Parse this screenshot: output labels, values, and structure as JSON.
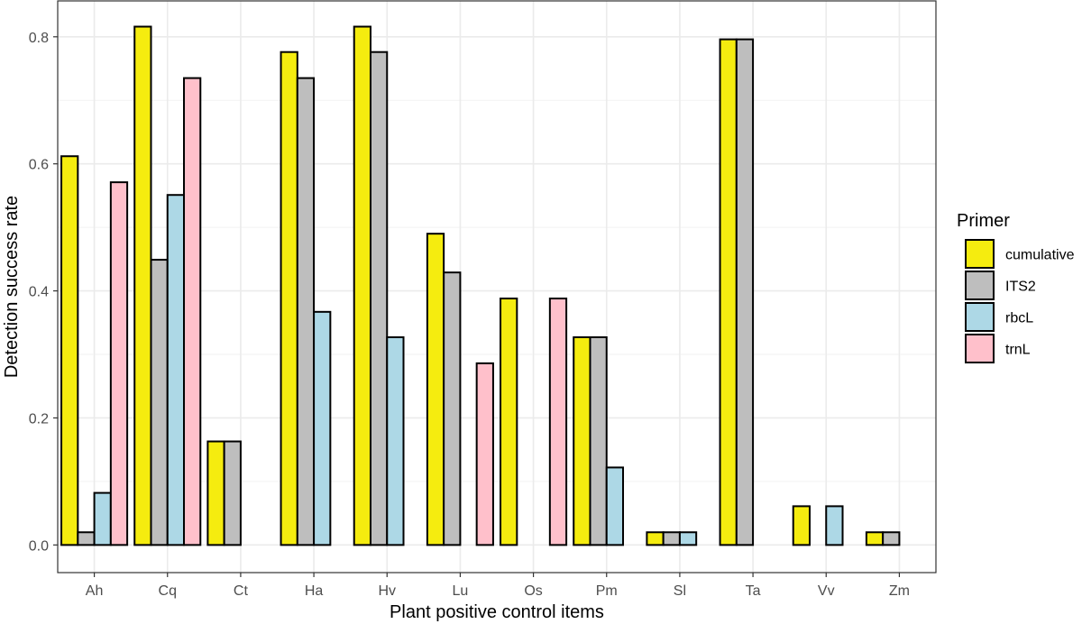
{
  "chart_data": {
    "type": "bar",
    "title": "",
    "xlabel": "Plant positive control items",
    "ylabel": "Detection success rate",
    "ylim": [
      -0.0435,
      0.8565
    ],
    "yticks": [
      "0.0",
      "0.2",
      "0.4",
      "0.6",
      "0.8"
    ],
    "ytick_values": [
      0.0,
      0.2,
      0.4,
      0.6,
      0.8
    ],
    "grid": true,
    "legend": {
      "title": "Primer",
      "position": "right"
    },
    "categories": [
      "Ah",
      "Cq",
      "Ct",
      "Ha",
      "Hv",
      "Lu",
      "Os",
      "Pm",
      "Sl",
      "Ta",
      "Vv",
      "Zm"
    ],
    "series": [
      {
        "name": "cumulative",
        "color": "#f5ec0f",
        "values": [
          0.612,
          0.816,
          0.163,
          0.776,
          0.816,
          0.49,
          0.388,
          0.327,
          0.02,
          0.796,
          0.061,
          0.02
        ]
      },
      {
        "name": "ITS2",
        "color": "#bebebe",
        "values": [
          0.02,
          0.449,
          0.163,
          0.735,
          0.776,
          0.429,
          0.0,
          0.327,
          0.02,
          0.796,
          0.0,
          0.02
        ]
      },
      {
        "name": "rbcL",
        "color": "#add8e6",
        "values": [
          0.082,
          0.551,
          0.0,
          0.367,
          0.327,
          0.0,
          0.0,
          0.122,
          0.02,
          0.0,
          0.061,
          0.0
        ]
      },
      {
        "name": "trnL",
        "color": "#ffc0cb",
        "values": [
          0.571,
          0.735,
          0.0,
          0.0,
          0.0,
          0.286,
          0.388,
          0.0,
          0.0,
          0.0,
          0.0,
          0.0
        ]
      }
    ]
  }
}
